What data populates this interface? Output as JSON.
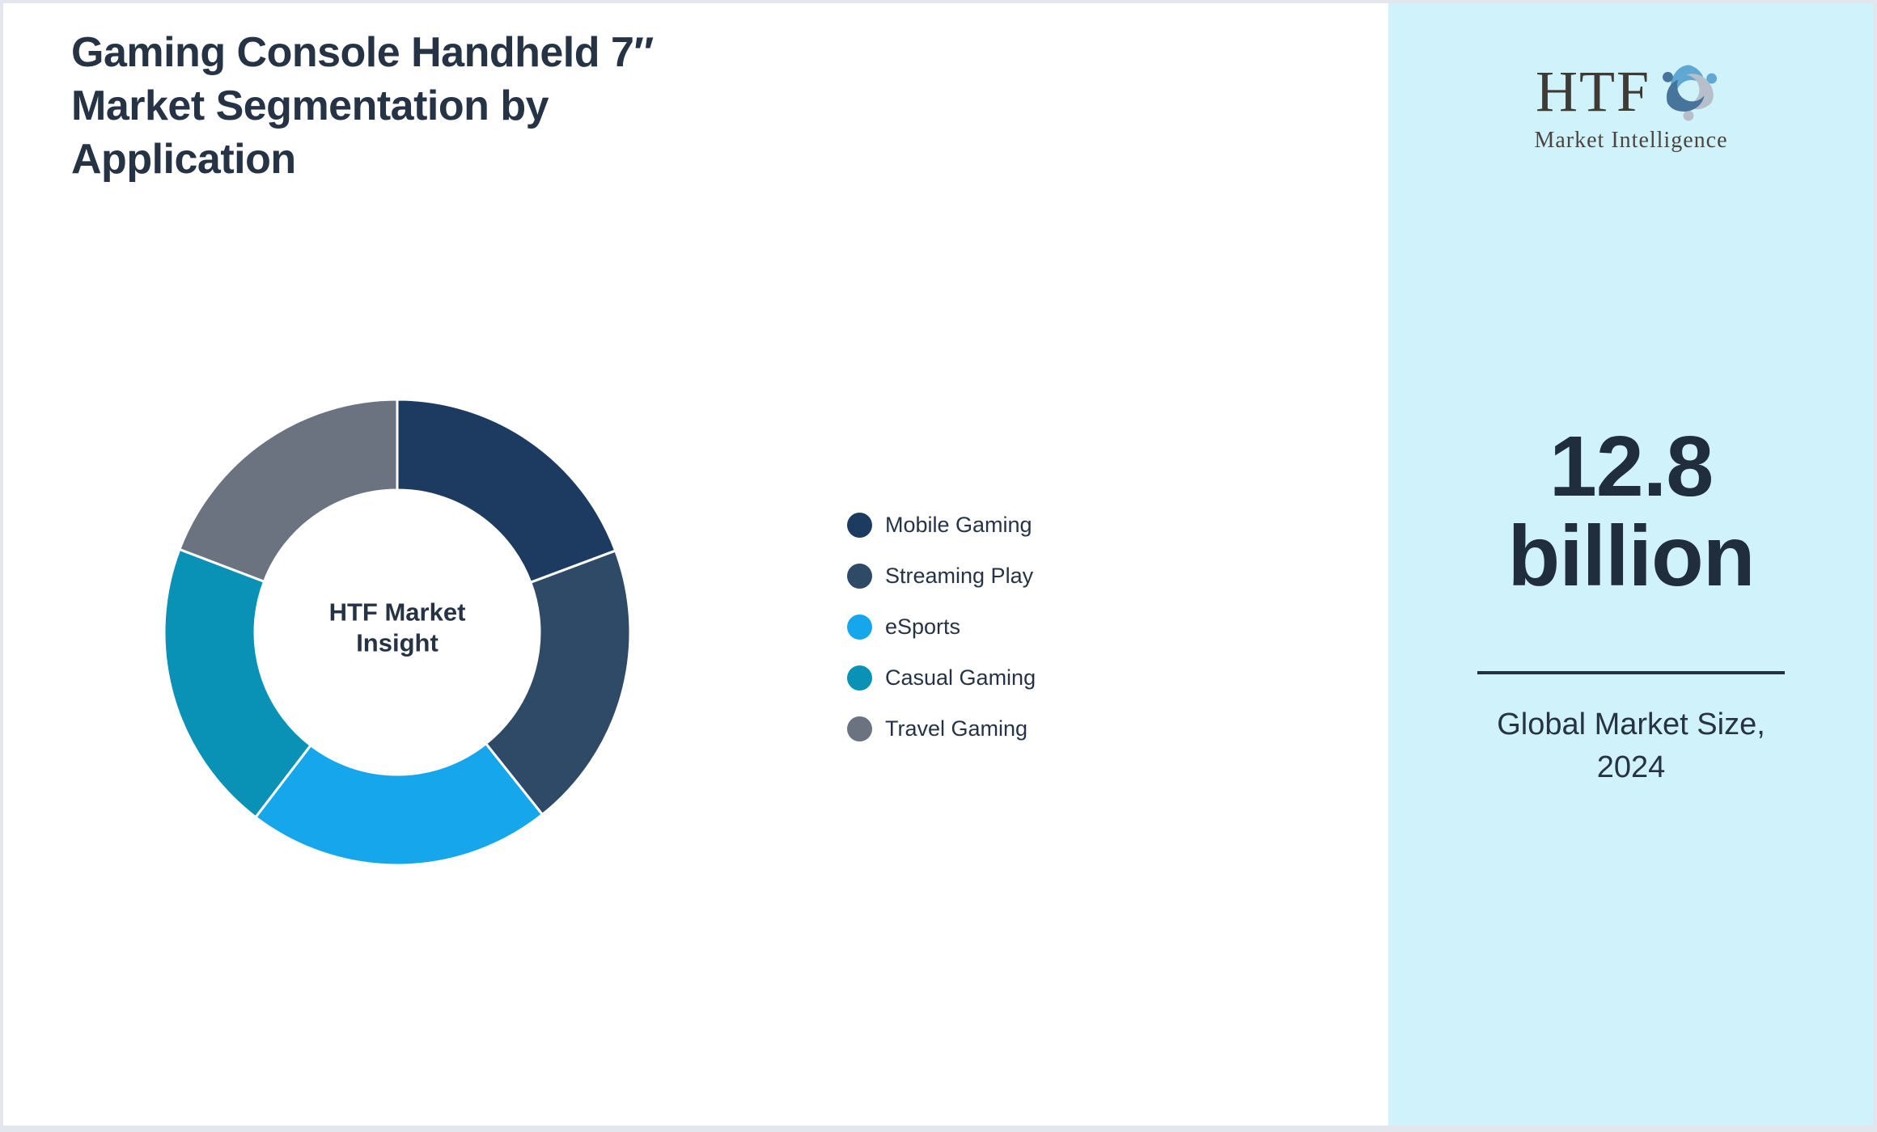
{
  "title": "Gaming Console Handheld 7″\nMarket Segmentation by\nApplication",
  "chart_data": {
    "type": "pie",
    "subtype": "donut",
    "title": "Gaming Console Handheld 7″ Market Segmentation by Application",
    "center_label": "HTF Market\nInsight",
    "categories": [
      "Mobile Gaming",
      "Streaming Play",
      "eSports",
      "Casual Gaming",
      "Travel Gaming"
    ],
    "values": [
      19.3,
      20.0,
      21.1,
      20.4,
      19.2
    ],
    "colors": [
      "#1d3a60",
      "#2f4a66",
      "#16a6ec",
      "#0a91b6",
      "#6b7280"
    ],
    "start_angle_deg": 0,
    "direction": "clockwise",
    "inner_radius_ratio": 0.61,
    "slice_separator_color": "#ffffff",
    "legend_position": "right"
  },
  "sidebar": {
    "background_color": "#d0f2fb",
    "logo": {
      "acronym": "HTF",
      "subtitle": "Market Intelligence",
      "swirl_colors": [
        "#5fa8d3",
        "#b7c0ca",
        "#47749b"
      ]
    },
    "stat_value": "12.8\nbillion",
    "caption": "Global Market Size,\n2024"
  },
  "theme": {
    "text_color": "#253345",
    "frame_border_color": "#e3e6ec"
  }
}
